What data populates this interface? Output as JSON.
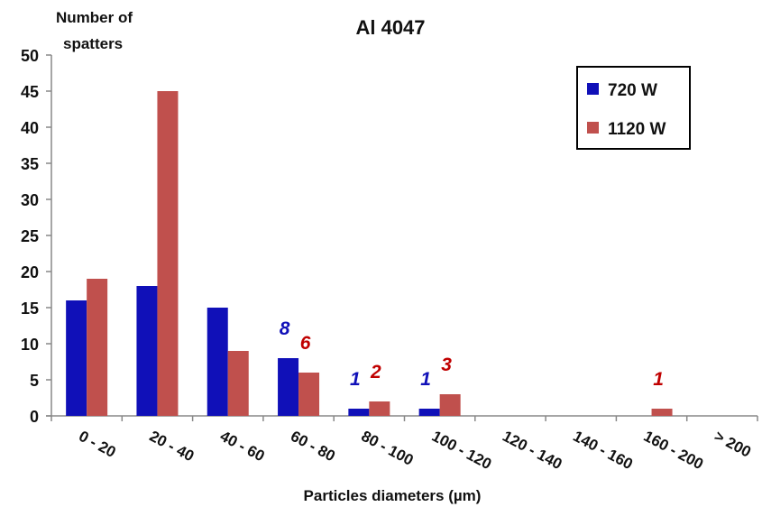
{
  "chart_data": {
    "type": "bar",
    "title": "Al 4047",
    "ylabel": "Number of spatters",
    "ylabel_lines": [
      "Number of",
      "spatters"
    ],
    "xlabel": "Particles diameters (µm)",
    "categories": [
      "0 - 20",
      "20 - 40",
      "40 - 60",
      "60 - 80",
      "80 - 100",
      "100 - 120",
      "120 - 140",
      "140 - 160",
      "160 - 200",
      "> 200"
    ],
    "series": [
      {
        "name": "720 W",
        "color": "#1010b8",
        "values": [
          16,
          18,
          15,
          8,
          1,
          1,
          0,
          0,
          0,
          0
        ]
      },
      {
        "name": "1120 W",
        "color": "#c0504d",
        "values": [
          19,
          45,
          9,
          6,
          2,
          3,
          0,
          0,
          1,
          0
        ]
      }
    ],
    "ylim": [
      0,
      50
    ],
    "yticks": [
      0,
      5,
      10,
      15,
      20,
      25,
      30,
      35,
      40,
      45,
      50
    ],
    "legend_position": "top-right",
    "grid": false,
    "annotations": [
      {
        "category": "60 - 80",
        "series": "720 W",
        "text": "8",
        "color": "#1010b8"
      },
      {
        "category": "60 - 80",
        "series": "1120 W",
        "text": "6",
        "color": "#c00000"
      },
      {
        "category": "80 - 100",
        "series": "720 W",
        "text": "1",
        "color": "#1010b8"
      },
      {
        "category": "80 - 100",
        "series": "1120 W",
        "text": "2",
        "color": "#c00000"
      },
      {
        "category": "100 - 120",
        "series": "720 W",
        "text": "1",
        "color": "#1010b8"
      },
      {
        "category": "100 - 120",
        "series": "1120 W",
        "text": "3",
        "color": "#c00000"
      },
      {
        "category": "160 - 200",
        "series": "1120 W",
        "text": "1",
        "color": "#c00000"
      }
    ]
  }
}
